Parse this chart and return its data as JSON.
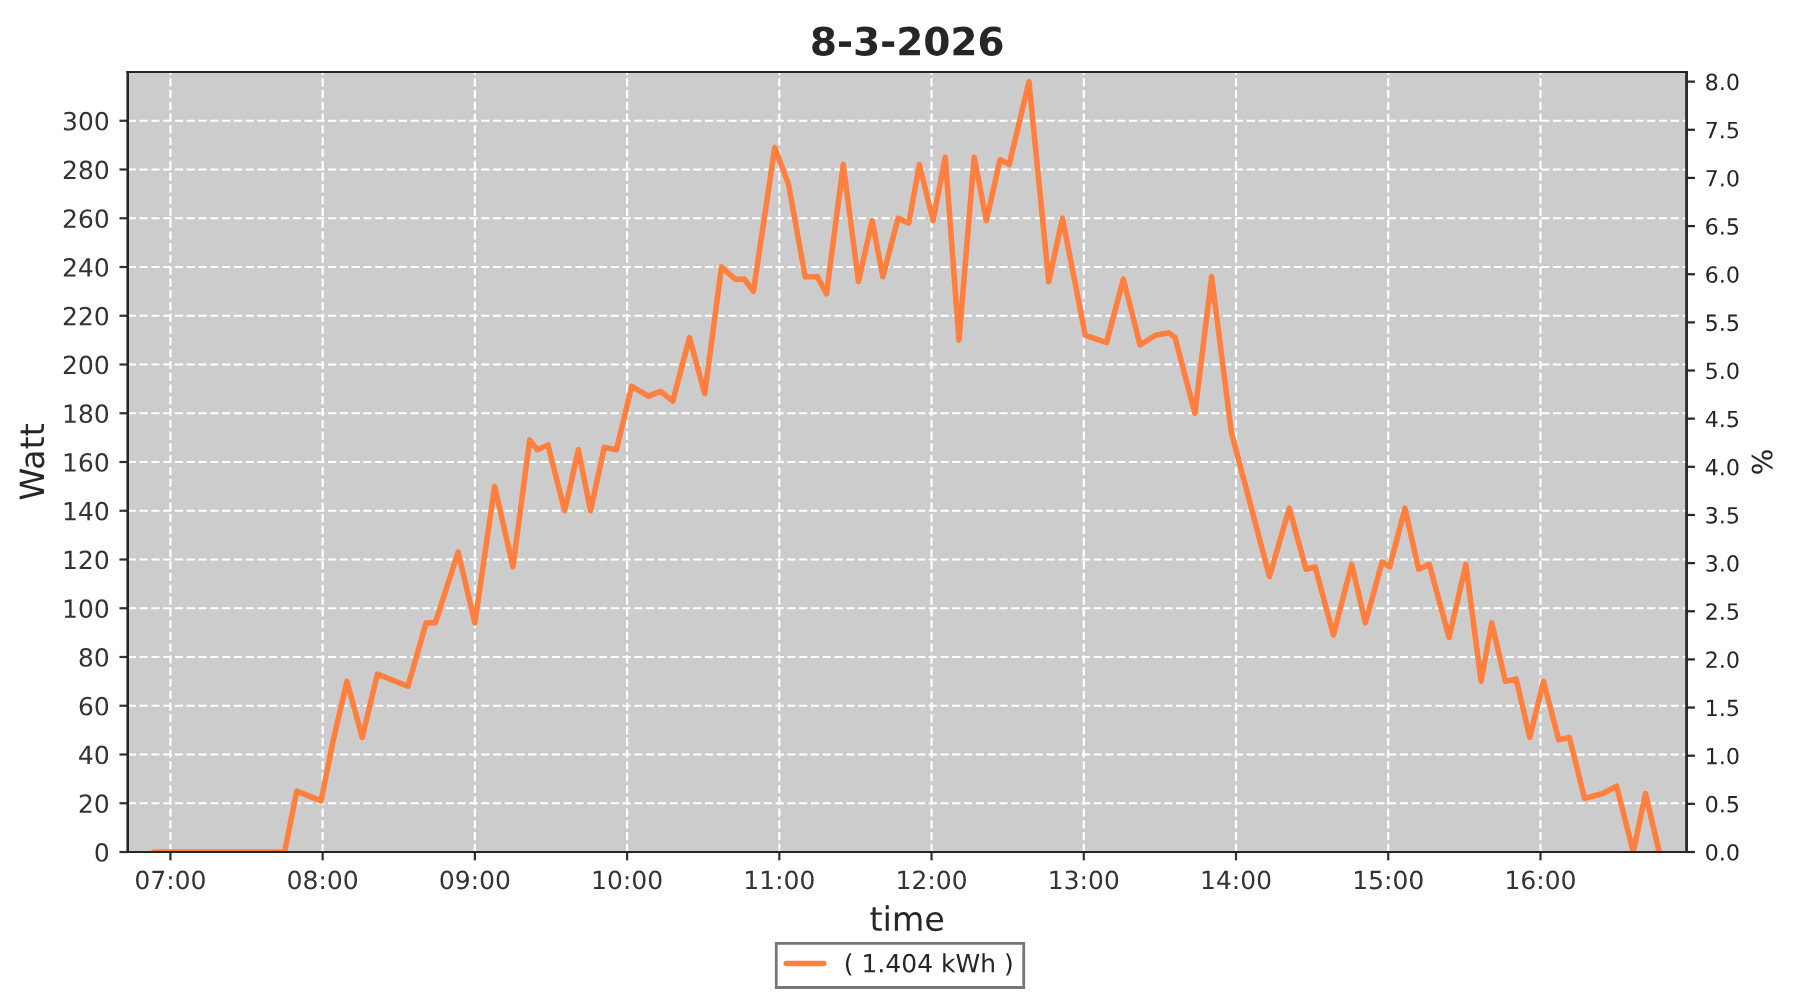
{
  "chart_data": {
    "type": "line",
    "title": "8-3-2026",
    "xlabel": "time",
    "ylabel": "Watt",
    "y2label": "%",
    "x": [
      6.89,
      7.68,
      7.75,
      7.83,
      7.99,
      8.07,
      8.16,
      8.26,
      8.36,
      8.56,
      8.68,
      8.74,
      8.89,
      9.0,
      9.13,
      9.25,
      9.36,
      9.41,
      9.48,
      9.59,
      9.68,
      9.76,
      9.85,
      9.93,
      10.03,
      10.14,
      10.22,
      10.3,
      10.41,
      10.51,
      10.62,
      10.71,
      10.77,
      10.83,
      10.97,
      11.06,
      11.17,
      11.25,
      11.31,
      11.42,
      11.52,
      11.61,
      11.68,
      11.78,
      11.85,
      11.92,
      12.01,
      12.09,
      12.18,
      12.28,
      12.36,
      12.45,
      12.51,
      12.64,
      12.77,
      12.86,
      13.01,
      13.15,
      13.26,
      13.37,
      13.47,
      13.56,
      13.6,
      13.73,
      13.84,
      13.97,
      14.11,
      14.22,
      14.35,
      14.46,
      14.52,
      14.64,
      14.76,
      14.85,
      14.96,
      15.01,
      15.11,
      15.2,
      15.27,
      15.4,
      15.51,
      15.61,
      15.68,
      15.77,
      15.84,
      15.93,
      16.02,
      16.12,
      16.19,
      16.29,
      16.41,
      16.5,
      16.61,
      16.69,
      16.78
    ],
    "series": [
      {
        "name": "( 1.404 kWh )",
        "color": "#ff7f3f",
        "values": [
          0,
          0,
          0,
          25,
          21,
          46,
          70,
          47,
          73,
          68,
          94,
          94,
          123,
          94,
          150,
          117,
          169,
          165,
          167,
          140,
          165,
          140,
          166,
          165,
          191,
          187,
          189,
          185,
          211,
          188,
          240,
          235,
          235,
          230,
          289,
          274,
          236,
          236,
          229,
          282,
          234,
          259,
          236,
          260,
          258,
          282,
          259,
          285,
          210,
          285,
          259,
          284,
          282,
          316,
          234,
          260,
          212,
          209,
          235,
          208,
          212,
          213,
          211,
          180,
          236,
          172,
          139,
          113,
          141,
          116,
          117,
          89,
          118,
          94,
          119,
          117,
          141,
          116,
          118,
          88,
          118,
          70,
          94,
          70,
          71,
          47,
          70,
          46,
          47,
          22,
          24,
          27,
          0,
          24,
          0
        ]
      }
    ],
    "xlim": [
      6.72,
      16.96
    ],
    "xticks": [
      {
        "value": 7,
        "label": "07:00"
      },
      {
        "value": 8,
        "label": "08:00"
      },
      {
        "value": 9,
        "label": "09:00"
      },
      {
        "value": 10,
        "label": "10:00"
      },
      {
        "value": 11,
        "label": "11:00"
      },
      {
        "value": 12,
        "label": "12:00"
      },
      {
        "value": 13,
        "label": "13:00"
      },
      {
        "value": 14,
        "label": "14:00"
      },
      {
        "value": 15,
        "label": "15:00"
      },
      {
        "value": 16,
        "label": "16:00"
      }
    ],
    "ylim": [
      0,
      320
    ],
    "yticks": [
      0,
      20,
      40,
      60,
      80,
      100,
      120,
      140,
      160,
      180,
      200,
      220,
      240,
      260,
      280,
      300
    ],
    "y2lim": [
      0,
      8.1
    ],
    "y2ticks": [
      {
        "value": 0,
        "label": "0.0"
      },
      0.5,
      {
        "value": 1,
        "label": "1.0"
      },
      1.5,
      {
        "value": 2,
        "label": "2.0"
      },
      2.5,
      {
        "value": 3,
        "label": "3.0"
      },
      3.5,
      {
        "value": 4,
        "label": "4.0"
      },
      4.5,
      {
        "value": 5,
        "label": "5.0"
      },
      5.5,
      {
        "value": 6,
        "label": "6.0"
      },
      6.5,
      {
        "value": 7,
        "label": "7.0"
      },
      7.5,
      {
        "value": 8,
        "label": "8.0"
      }
    ],
    "grid": true,
    "legend": "bottom",
    "line_style": "solid",
    "marker": "none"
  }
}
